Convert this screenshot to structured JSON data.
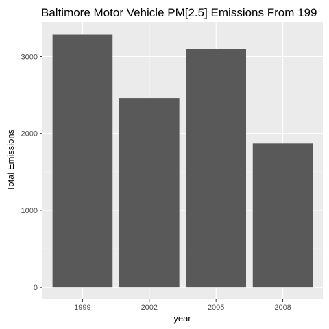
{
  "chart_data": {
    "type": "bar",
    "title": "Baltimore Motor Vehicle PM[2.5] Emissions From 199",
    "xlabel": "year",
    "ylabel": "Total Emissions",
    "categories": [
      "1999",
      "2002",
      "2005",
      "2008"
    ],
    "values": [
      3285,
      2460,
      3095,
      1870
    ],
    "ylim": [
      -150,
      3450
    ],
    "yticks": [
      0,
      1000,
      2000,
      3000
    ],
    "ytick_labels": [
      "0",
      "1000",
      "2000",
      "3000"
    ],
    "grid": true,
    "colors": {
      "bar": "#595959",
      "panel": "#ebebeb",
      "grid_major": "#ffffff",
      "text": "#1a1a1a",
      "tick_text": "#4d4d4d"
    }
  }
}
